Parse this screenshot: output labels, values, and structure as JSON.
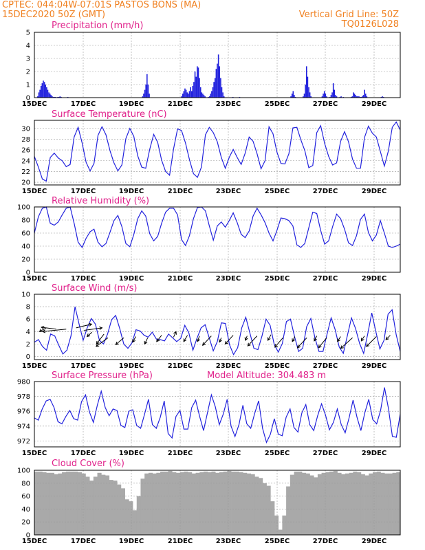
{
  "header": {
    "line1_left": "CPTEC:   044:04W-07:01S   PASTOS BONS (MA)",
    "line2_left": "15DEC2020 50Z (GMT)",
    "line1_right": "Vertical Grid Line: 50Z",
    "line2_right": "TQ0126L028"
  },
  "colors": {
    "header": "#f08020",
    "title": "#e0208a",
    "series": "#2222dd",
    "cloud": "#a9a9a9"
  },
  "chart_data": [
    {
      "type": "bar",
      "title": "Precipitation (mm/h)",
      "x_tick_labels": [
        "15DEC",
        "17DEC",
        "19DEC",
        "21DEC",
        "23DEC",
        "25DEC",
        "27DEC",
        "29DEC"
      ],
      "ylim": [
        0,
        5
      ],
      "y_ticks": [
        0,
        1,
        2,
        3,
        4,
        5
      ],
      "values": [
        0,
        0,
        0,
        0.1,
        0.4,
        0.6,
        0.9,
        1.1,
        1.3,
        1.2,
        1.0,
        0.8,
        0.6,
        0.4,
        0.3,
        0.2,
        0.1,
        0.05,
        0.05,
        0.05,
        0,
        0.05,
        0.05,
        0.1,
        0.05,
        0,
        0,
        0,
        0,
        0,
        0.05,
        0,
        0,
        0,
        0,
        0,
        0,
        0,
        0,
        0,
        0,
        0,
        0,
        0,
        0,
        0,
        0,
        0,
        0,
        0,
        0,
        0,
        0,
        0,
        0,
        0,
        0,
        0,
        0,
        0,
        0,
        0,
        0,
        0,
        0,
        0,
        0,
        0,
        0,
        0,
        0,
        0,
        0,
        0,
        0,
        0,
        0,
        0,
        0,
        0,
        0,
        0,
        0,
        0,
        0,
        0,
        0,
        0,
        0,
        0,
        0,
        0,
        0,
        0,
        0,
        0,
        0,
        0.1,
        0.3,
        0.6,
        1.0,
        1.8,
        1.0,
        0.3,
        0,
        0,
        0,
        0,
        0,
        0,
        0,
        0,
        0,
        0,
        0,
        0,
        0,
        0,
        0,
        0,
        0,
        0,
        0,
        0,
        0,
        0,
        0,
        0,
        0,
        0,
        0,
        0,
        0.1,
        0.3,
        0.5,
        0.7,
        0.6,
        0.4,
        0.3,
        0.5,
        0.8,
        0.5,
        0.9,
        1.2,
        2.0,
        1.6,
        2.4,
        2.3,
        1.5,
        0.8,
        0.4,
        0.3,
        0.2,
        0.1,
        0,
        0,
        0.05,
        0.1,
        0.3,
        0.5,
        0.8,
        1.2,
        1.5,
        2.2,
        2.6,
        3.3,
        2.4,
        1.5,
        0.8,
        0.4,
        0.1,
        0,
        0,
        0,
        0,
        0,
        0,
        0,
        0.05,
        0,
        0,
        0,
        0,
        0,
        0.05,
        0,
        0,
        0,
        0,
        0,
        0,
        0,
        0,
        0,
        0,
        0,
        0,
        0,
        0,
        0,
        0,
        0,
        0,
        0,
        0,
        0,
        0,
        0,
        0,
        0,
        0,
        0,
        0,
        0,
        0,
        0,
        0,
        0,
        0,
        0,
        0,
        0,
        0,
        0,
        0,
        0,
        0,
        0,
        0,
        0,
        0.1,
        0.3,
        0.5,
        0.2,
        0.05,
        0,
        0,
        0,
        0,
        0,
        0,
        0.1,
        0.3,
        1.0,
        2.4,
        1.6,
        0.8,
        0.4,
        0.1,
        0,
        0,
        0,
        0,
        0,
        0,
        0,
        0,
        0,
        0.1,
        0.3,
        0.5,
        0.3,
        0.1,
        0,
        0,
        0.05,
        0.2,
        0.4,
        1.1,
        0.6,
        0.2,
        0.1,
        0,
        0,
        0.05,
        0.1,
        0,
        0.05,
        0,
        0,
        0,
        0,
        0,
        0,
        0.05,
        0.1,
        0.4,
        0.3,
        0.2,
        0.1,
        0.1,
        0.1,
        0.05,
        0.05,
        0.1,
        0.2,
        0.6,
        0.3,
        0.1,
        0,
        0,
        0,
        0,
        0,
        0,
        0,
        0,
        0,
        0,
        0,
        0,
        0.05,
        0.1,
        0.05,
        0,
        0,
        0,
        0,
        0,
        0,
        0,
        0,
        0,
        0,
        0,
        0,
        0,
        0,
        0
      ]
    },
    {
      "type": "line",
      "title": "Surface Temperature (nC)",
      "x_tick_labels": [
        "15DEC",
        "17DEC",
        "19DEC",
        "21DEC",
        "23DEC",
        "25DEC",
        "27DEC",
        "29DEC"
      ],
      "ylim": [
        19.5,
        31.5
      ],
      "y_ticks": [
        20,
        22,
        24,
        26,
        28,
        30
      ],
      "values": [
        24.8,
        22.8,
        20.6,
        20.2,
        24.6,
        25.4,
        24.5,
        24.0,
        22.9,
        23.3,
        28.4,
        30.2,
        27.3,
        23.7,
        22.1,
        23.5,
        28.7,
        30.3,
        28.8,
        25.9,
        23.6,
        22.1,
        23.2,
        28.1,
        30.0,
        28.5,
        24.9,
        22.8,
        22.6,
        26.1,
        28.9,
        27.4,
        24.1,
        22.0,
        21.3,
        26.2,
        29.9,
        29.6,
        27.3,
        24.2,
        21.6,
        20.9,
        22.8,
        28.8,
        30.2,
        29.2,
        27.5,
        24.6,
        22.6,
        24.6,
        26.1,
        24.6,
        23.3,
        25.4,
        28.4,
        27.6,
        25.3,
        22.5,
        24.0,
        30.3,
        29.0,
        25.6,
        23.5,
        23.4,
        25.3,
        30.1,
        30.2,
        27.9,
        25.9,
        22.7,
        23.1,
        29.2,
        30.5,
        27.2,
        24.8,
        23.2,
        23.6,
        27.6,
        29.4,
        27.5,
        24.3,
        22.6,
        22.6,
        28.3,
        30.4,
        29.1,
        28.4,
        25.7,
        23.0,
        25.8,
        30.2,
        31.2,
        29.7
      ]
    },
    {
      "type": "line",
      "title": "Relative Humidity (%)",
      "x_tick_labels": [
        "15DEC",
        "17DEC",
        "19DEC",
        "21DEC",
        "23DEC",
        "25DEC",
        "27DEC",
        "29DEC"
      ],
      "ylim": [
        0,
        100
      ],
      "y_ticks": [
        0,
        20,
        40,
        60,
        80,
        100
      ],
      "values": [
        60,
        85,
        98,
        100,
        75,
        72,
        77,
        88,
        98,
        100,
        75,
        46,
        38,
        52,
        62,
        66,
        46,
        39,
        44,
        61,
        79,
        87,
        70,
        44,
        39,
        58,
        82,
        94,
        86,
        59,
        48,
        55,
        75,
        92,
        98,
        98,
        88,
        50,
        41,
        56,
        82,
        99,
        100,
        94,
        71,
        49,
        71,
        77,
        69,
        79,
        91,
        76,
        58,
        53,
        63,
        86,
        98,
        88,
        76,
        60,
        48,
        64,
        83,
        82,
        79,
        71,
        42,
        38,
        44,
        68,
        92,
        90,
        64,
        43,
        48,
        70,
        89,
        82,
        66,
        45,
        41,
        56,
        81,
        89,
        61,
        48,
        57,
        79,
        60,
        40,
        38,
        40,
        43
      ]
    },
    {
      "type": "line",
      "title": "Surface Wind (m/s)",
      "x_tick_labels": [
        "15DEC",
        "17DEC",
        "19DEC",
        "21DEC",
        "23DEC",
        "25DEC",
        "27DEC",
        "29DEC"
      ],
      "ylim": [
        -0.5,
        10
      ],
      "y_ticks": [
        0,
        2,
        4,
        6,
        8,
        10
      ],
      "values": [
        2.3,
        2.7,
        1.6,
        1.0,
        3.6,
        3.3,
        1.8,
        0.4,
        1.0,
        3.3,
        8.0,
        5.2,
        2.6,
        4.6,
        6.1,
        5.2,
        2.6,
        2.0,
        3.6,
        5.9,
        6.6,
        4.5,
        2.0,
        1.3,
        2.2,
        4.3,
        4.1,
        3.4,
        3.1,
        3.9,
        2.8,
        2.7,
        2.5,
        3.6,
        3.0,
        2.4,
        2.9,
        5.0,
        3.8,
        1.0,
        2.9,
        4.6,
        5.1,
        3.0,
        0.9,
        2.4,
        5.4,
        5.3,
        1.9,
        0.3,
        1.4,
        4.6,
        6.3,
        3.8,
        1.3,
        1.1,
        3.3,
        6.0,
        5.0,
        1.9,
        0.7,
        2.1,
        5.6,
        6.0,
        3.2,
        0.8,
        1.3,
        4.8,
        6.1,
        3.0,
        0.8,
        0.8,
        3.6,
        6.2,
        4.3,
        1.5,
        0.5,
        3.4,
        6.2,
        4.5,
        2.1,
        0.5,
        3.6,
        7.0,
        4.0,
        1.2,
        2.6,
        6.8,
        7.5,
        3.5,
        0.8
      ],
      "barbs": [
        {
          "x": 3.0,
          "s": 4.6,
          "u": -1.1,
          "v": -0.6
        },
        {
          "x": 5.5,
          "s": 4.4,
          "u": -2.4,
          "v": 0.3
        },
        {
          "x": 8.0,
          "s": 4.4,
          "u": -3.8,
          "v": -0.4
        },
        {
          "x": 10.5,
          "s": 4.6,
          "u": 2.5,
          "v": 0.6
        },
        {
          "x": 12.5,
          "s": 4.2,
          "u": 2.9,
          "v": 0.4
        },
        {
          "x": 14.5,
          "s": 3.9,
          "u": -0.8,
          "v": -0.7
        },
        {
          "x": 17.5,
          "s": 3.6,
          "u": -1.2,
          "v": -1.6
        },
        {
          "x": 18.5,
          "s": 3.0,
          "u": -1.9,
          "v": -1.4
        },
        {
          "x": 22.5,
          "s": 3.0,
          "u": -1.3,
          "v": -1.1
        },
        {
          "x": 25.5,
          "s": 3.2,
          "u": -0.5,
          "v": -0.9
        },
        {
          "x": 28.5,
          "s": 3.0,
          "u": -0.5,
          "v": -1.0
        },
        {
          "x": 32.0,
          "s": 3.4,
          "u": -0.8,
          "v": -1.0
        },
        {
          "x": 35.0,
          "s": 3.1,
          "u": 0.4,
          "v": 0.9
        },
        {
          "x": 38.5,
          "s": 3.4,
          "u": -0.6,
          "v": -1.0
        },
        {
          "x": 41.5,
          "s": 3.3,
          "u": -0.3,
          "v": -0.9
        },
        {
          "x": 44.5,
          "s": 3.3,
          "u": -1.4,
          "v": -1.5
        },
        {
          "x": 47.0,
          "s": 3.0,
          "u": -0.3,
          "v": -0.7
        },
        {
          "x": 50.0,
          "s": 3.4,
          "u": -1.3,
          "v": -1.4
        },
        {
          "x": 53.5,
          "s": 3.3,
          "u": -0.3,
          "v": -0.7
        },
        {
          "x": 56.0,
          "s": 3.3,
          "u": -1.5,
          "v": -1.6
        },
        {
          "x": 59.5,
          "s": 3.5,
          "u": -0.5,
          "v": -0.9
        },
        {
          "x": 62.5,
          "s": 3.0,
          "u": -1.3,
          "v": -1.5
        },
        {
          "x": 65.5,
          "s": 3.2,
          "u": -0.4,
          "v": -0.8
        },
        {
          "x": 68.5,
          "s": 3.0,
          "u": -1.5,
          "v": -1.6
        },
        {
          "x": 71.0,
          "s": 3.3,
          "u": -0.4,
          "v": -0.8
        },
        {
          "x": 73.5,
          "s": 3.0,
          "u": -1.3,
          "v": -1.6
        },
        {
          "x": 77.0,
          "s": 3.2,
          "u": -0.5,
          "v": -0.8
        },
        {
          "x": 80.0,
          "s": 3.0,
          "u": -1.9,
          "v": -1.7
        },
        {
          "x": 83.0,
          "s": 3.3,
          "u": -0.5,
          "v": -0.8
        },
        {
          "x": 86.0,
          "s": 3.2,
          "u": -1.6,
          "v": -1.6
        },
        {
          "x": 89.5,
          "s": 3.4,
          "u": -0.7,
          "v": -0.7
        }
      ]
    },
    {
      "type": "line",
      "title": "Surface Pressure (hPa)",
      "annotation": "Model Altitude: 304.483  m",
      "x_tick_labels": [
        "15DEC",
        "17DEC",
        "19DEC",
        "21DEC",
        "23DEC",
        "25DEC",
        "27DEC",
        "29DEC"
      ],
      "ylim": [
        971.2,
        980
      ],
      "y_ticks": [
        972,
        974,
        976,
        978,
        980
      ],
      "values": [
        975.1,
        974.8,
        976.3,
        977.4,
        977.6,
        976.5,
        974.6,
        974.3,
        975.3,
        976.1,
        975.0,
        974.8,
        977.3,
        978.2,
        975.9,
        974.5,
        976.8,
        978.7,
        976.5,
        975.4,
        976.3,
        976.1,
        974.1,
        973.8,
        976.0,
        976.2,
        974.1,
        973.7,
        975.6,
        977.6,
        974.2,
        973.7,
        975.2,
        977.4,
        973.0,
        972.4,
        975.3,
        976.1,
        973.6,
        973.6,
        976.5,
        977.5,
        975.3,
        973.4,
        975.8,
        978.2,
        976.6,
        974.2,
        975.6,
        977.6,
        974.0,
        972.6,
        974.2,
        976.8,
        974.3,
        973.7,
        975.7,
        977.4,
        973.7,
        971.8,
        972.9,
        975.0,
        972.9,
        972.7,
        975.2,
        976.3,
        973.8,
        973.2,
        975.8,
        976.9,
        974.2,
        973.4,
        975.4,
        977.0,
        975.5,
        973.5,
        974.5,
        976.3,
        974.2,
        973.1,
        975.1,
        977.5,
        975.2,
        973.4,
        975.8,
        977.6,
        974.9,
        974.3,
        976.1,
        979.2,
        976.4,
        972.6,
        972.5,
        975.6
      ]
    },
    {
      "type": "area",
      "title": "Cloud Cover (%)",
      "x_tick_labels": [
        "15DEC",
        "17DEC",
        "19DEC",
        "21DEC",
        "23DEC",
        "25DEC",
        "27DEC",
        "29DEC"
      ],
      "ylim": [
        0,
        100
      ],
      "y_ticks": [
        0,
        20,
        40,
        60,
        80,
        100
      ],
      "values": [
        98,
        98,
        97,
        96,
        96,
        94,
        95,
        97,
        98,
        98,
        98,
        97,
        95,
        90,
        84,
        90,
        96,
        93,
        92,
        85,
        84,
        78,
        72,
        55,
        52,
        38,
        60,
        87,
        95,
        96,
        95,
        96,
        98,
        98,
        99,
        97,
        96,
        97,
        98,
        97,
        95,
        96,
        97,
        98,
        97,
        98,
        96,
        97,
        98,
        99,
        98,
        98,
        97,
        96,
        95,
        94,
        90,
        88,
        80,
        76,
        52,
        30,
        8,
        30,
        75,
        93,
        98,
        98,
        96,
        95,
        92,
        89,
        94,
        96,
        97,
        98,
        99,
        96,
        94,
        95,
        96,
        98,
        97,
        94,
        92,
        95,
        97,
        98,
        96,
        95,
        95,
        96,
        97
      ]
    }
  ]
}
